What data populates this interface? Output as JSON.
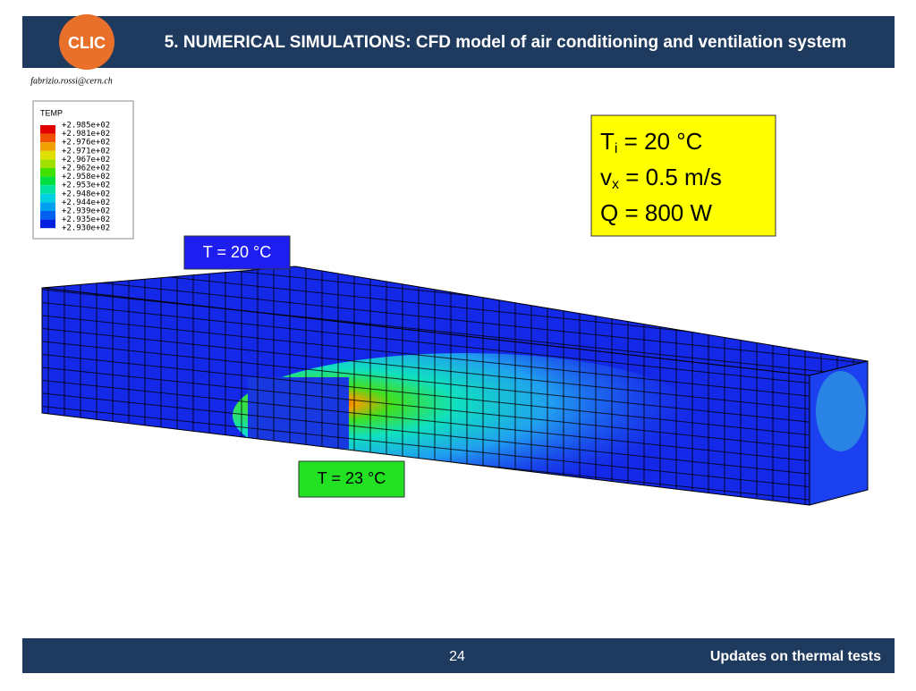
{
  "header": {
    "logo": "CLIC",
    "title": "5. NUMERICAL SIMULATIONS: CFD model of air conditioning and ventilation system",
    "author": "fabrizio.rossi@cern.ch"
  },
  "legend": {
    "title": "TEMP",
    "labels": [
      "+2.985e+02",
      "+2.981e+02",
      "+2.976e+02",
      "+2.971e+02",
      "+2.967e+02",
      "+2.962e+02",
      "+2.958e+02",
      "+2.953e+02",
      "+2.948e+02",
      "+2.944e+02",
      "+2.939e+02",
      "+2.935e+02",
      "+2.930e+02"
    ]
  },
  "inlet_box": "T = 20 °C",
  "source_box": "T = 23 °C",
  "info_box": {
    "lines": [
      {
        "main": "T",
        "sub": "i",
        "rest": " = 20 °C"
      },
      {
        "main": "v",
        "sub": "x",
        "rest": " = 0.5 m/s"
      },
      {
        "main": "Q = 800 W",
        "sub": "",
        "rest": ""
      }
    ]
  },
  "footer": {
    "page": "24",
    "title": "Updates on thermal tests"
  }
}
